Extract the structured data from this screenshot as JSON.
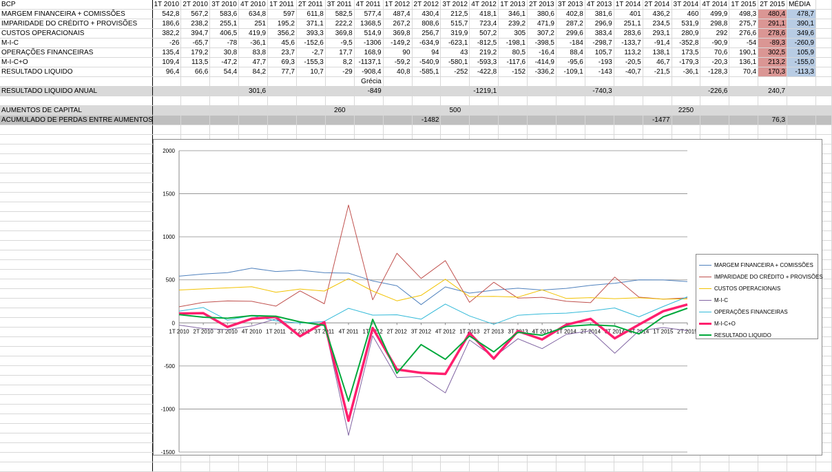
{
  "sheet": {
    "header": [
      "BCP",
      "1T 2010",
      "2T 2010",
      "3T 2010",
      "4T 2010",
      "1T 2011",
      "2T 2011",
      "3T 2011",
      "4T 2011",
      "1T 2012",
      "2T 2012",
      "3T 2012",
      "4T 2012",
      "1T 2013",
      "2T 2013",
      "3T 2013",
      "4T 2013",
      "1T 2014",
      "2T 2014",
      "3T 2014",
      "4T 2014",
      "1T 2015",
      "2T 2015",
      "MÉDIA"
    ],
    "rows": [
      {
        "label": "MARGEM FINANCEIRA + COMISSÕES",
        "values": [
          "542,8",
          "567,2",
          "583,6",
          "634,8",
          "597",
          "611,8",
          "582,5",
          "577,4",
          "487,4",
          "430,4",
          "212,5",
          "418,1",
          "346,1",
          "380,6",
          "402,8",
          "381,6",
          "401",
          "436,2",
          "460",
          "499,9",
          "498,3",
          "480,4",
          "478,7"
        ]
      },
      {
        "label": "IMPARIDADE DO CRÉDITO + PROVISÕES",
        "values": [
          "186,6",
          "238,2",
          "255,1",
          "251",
          "195,2",
          "371,1",
          "222,2",
          "1368,5",
          "267,2",
          "808,6",
          "515,7",
          "723,4",
          "239,2",
          "471,9",
          "287,2",
          "296,9",
          "251,1",
          "234,5",
          "531,9",
          "298,8",
          "275,7",
          "291,1",
          "390,1"
        ]
      },
      {
        "label": "CUSTOS OPERACIONAIS",
        "values": [
          "382,2",
          "394,7",
          "406,5",
          "419,9",
          "356,2",
          "393,3",
          "369,8",
          "514,9",
          "369,8",
          "256,7",
          "319,9",
          "507,2",
          "305",
          "307,2",
          "299,6",
          "383,4",
          "283,6",
          "293,1",
          "280,9",
          "292",
          "276,6",
          "278,6",
          "349,6"
        ]
      },
      {
        "label": "M-I-C",
        "values": [
          "-26",
          "-65,7",
          "-78",
          "-36,1",
          "45,6",
          "-152,6",
          "-9,5",
          "-1306",
          "-149,2",
          "-634,9",
          "-623,1",
          "-812,5",
          "-198,1",
          "-398,5",
          "-184",
          "-298,7",
          "-133,7",
          "-91,4",
          "-352,8",
          "-90,9",
          "-54",
          "-89,3",
          "-260,9"
        ]
      },
      {
        "label": "OPERAÇÕES FINANCEIRAS",
        "values": [
          "135,4",
          "179,2",
          "30,8",
          "83,8",
          "23,7",
          "-2,7",
          "17,7",
          "168,9",
          "90",
          "94",
          "43",
          "219,2",
          "80,5",
          "-16,4",
          "88,4",
          "105,7",
          "113,2",
          "138,1",
          "173,5",
          "70,6",
          "190,1",
          "302,5",
          "105,9"
        ]
      },
      {
        "label": "M-I-C+O",
        "values": [
          "109,4",
          "113,5",
          "-47,2",
          "47,7",
          "69,3",
          "-155,3",
          "8,2",
          "-1137,1",
          "-59,2",
          "-540,9",
          "-580,1",
          "-593,3",
          "-117,6",
          "-414,9",
          "-95,6",
          "-193",
          "-20,5",
          "46,7",
          "-179,3",
          "-20,3",
          "136,1",
          "213,2",
          "-155,0"
        ]
      },
      {
        "label": "RESULTADO LIQUIDO",
        "values": [
          "96,4",
          "66,6",
          "54,4",
          "84,2",
          "77,7",
          "10,7",
          "-29",
          "-908,4",
          "40,8",
          "-585,1",
          "-252",
          "-422,8",
          "-152",
          "-336,2",
          "-109,1",
          "-143",
          "-40,7",
          "-21,5",
          "-36,1",
          "-128,3",
          "70,4",
          "170,3",
          "-113,3"
        ]
      }
    ],
    "note_grecia": "Grécia",
    "resultado_anual": {
      "label": "RESULTADO LIQUIDO ANUAL",
      "v2010": "301,6",
      "v2011": "-849",
      "v2012": "-1219,1",
      "v2013": "-740,3",
      "v2014": "-226,6",
      "v2015": "240,7"
    },
    "aumentos": {
      "label": "AUMENTOS DE CAPITAL",
      "a1": "260",
      "a2": "500",
      "a3": "2250"
    },
    "acumulado": {
      "label": "ACUMULADO DE PERDAS ENTRE AUMENTOS",
      "b1": "-1482",
      "b2": "-1477",
      "b3": "76,3"
    }
  },
  "chart_data": {
    "type": "line",
    "categories": [
      "1T 2010",
      "2T 2010",
      "3T 2010",
      "4T 2010",
      "1T 2011",
      "2T 2011",
      "3T 2011",
      "4T 2011",
      "1T 2012",
      "2T 2012",
      "3T 2012",
      "4T 2012",
      "1T 2013",
      "2T 2013",
      "3T 2013",
      "4T 2013",
      "1T 2014",
      "2T 2014",
      "3T 2014",
      "4T 2014",
      "1T 2015",
      "2T 2015"
    ],
    "ylim": [
      -1500,
      2000
    ],
    "yticks": [
      2000,
      1500,
      1000,
      500,
      0,
      -500,
      -1000,
      -1500
    ],
    "grid": true,
    "legend_position": "right",
    "series": [
      {
        "name": "MARGEM FINANCEIRA + COMISSÕES",
        "color": "#4f81bd",
        "width": 1,
        "values": [
          542.8,
          567.2,
          583.6,
          634.8,
          597,
          611.8,
          582.5,
          577.4,
          487.4,
          430.4,
          212.5,
          418.1,
          346.1,
          380.6,
          402.8,
          381.6,
          401,
          436.2,
          460,
          499.9,
          498.3,
          480.4
        ]
      },
      {
        "name": "IMPARIDADE DO CRÉDITO + PROVISÕES",
        "color": "#c0504d",
        "width": 1,
        "values": [
          186.6,
          238.2,
          255.1,
          251,
          195.2,
          371.1,
          222.2,
          1368.5,
          267.2,
          808.6,
          515.7,
          723.4,
          239.2,
          471.9,
          287.2,
          296.9,
          251.1,
          234.5,
          531.9,
          298.8,
          275.7,
          291.1
        ]
      },
      {
        "name": "CUSTOS OPERACIONAIS",
        "color": "#f2c200",
        "width": 1,
        "values": [
          382.2,
          394.7,
          406.5,
          419.9,
          356.2,
          393.3,
          369.8,
          514.9,
          369.8,
          256.7,
          319.9,
          507.2,
          305,
          307.2,
          299.6,
          383.4,
          283.6,
          293.1,
          280.9,
          292,
          276.6,
          278.6
        ]
      },
      {
        "name": "M-I-C",
        "color": "#8064a2",
        "width": 1,
        "values": [
          -26,
          -65.7,
          -78,
          -36.1,
          45.6,
          -152.6,
          -9.5,
          -1306,
          -149.2,
          -634.9,
          -623.1,
          -812.5,
          -198.1,
          -398.5,
          -184,
          -298.7,
          -133.7,
          -91.4,
          -352.8,
          -90.9,
          -54,
          -89.3
        ]
      },
      {
        "name": "OPERAÇÕES FINANCEIRAS",
        "color": "#31b9d8",
        "width": 1,
        "values": [
          135.4,
          179.2,
          30.8,
          83.8,
          23.7,
          -2.7,
          17.7,
          168.9,
          90,
          94,
          43,
          219.2,
          80.5,
          -16.4,
          88.4,
          105.7,
          113.2,
          138.1,
          173.5,
          70.6,
          190.1,
          302.5
        ]
      },
      {
        "name": "M-I-C+O",
        "color": "#ff1f6e",
        "width": 3.5,
        "values": [
          109.4,
          113.5,
          -47.2,
          47.7,
          69.3,
          -155.3,
          8.2,
          -1137.1,
          -59.2,
          -540.9,
          -580.1,
          -593.3,
          -117.6,
          -414.9,
          -95.6,
          -193,
          -20.5,
          46.7,
          -179.3,
          -20.3,
          136.1,
          213.2
        ]
      },
      {
        "name": "RESULTADO LIQUIDO",
        "color": "#00a83b",
        "width": 2,
        "values": [
          96.4,
          66.6,
          54.4,
          84.2,
          77.7,
          10.7,
          -29,
          -908.4,
          40.8,
          -585.1,
          -252,
          -422.8,
          -152,
          -336.2,
          -109.1,
          -143,
          -40.7,
          -21.5,
          -36.1,
          -128.3,
          70.4,
          170.3
        ]
      }
    ]
  }
}
